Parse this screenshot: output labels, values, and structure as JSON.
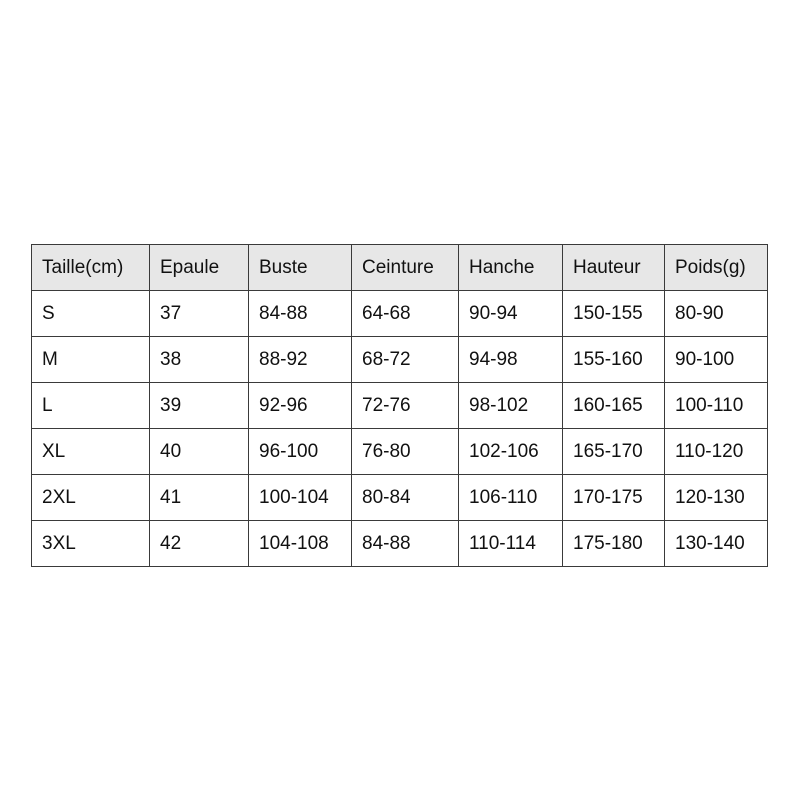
{
  "table": {
    "headers": [
      "Taille(cm)",
      "Epaule",
      "Buste",
      "Ceinture",
      "Hanche",
      "Hauteur",
      "Poids(g)"
    ],
    "rows": [
      [
        "S",
        "37",
        "84-88",
        "64-68",
        "90-94",
        "150-155",
        "80-90"
      ],
      [
        "M",
        "38",
        "88-92",
        "68-72",
        "94-98",
        "155-160",
        "90-100"
      ],
      [
        "L",
        "39",
        "92-96",
        "72-76",
        "98-102",
        "160-165",
        "100-110"
      ],
      [
        "XL",
        "40",
        "96-100",
        "76-80",
        "102-106",
        "165-170",
        "110-120"
      ],
      [
        "2XL",
        "41",
        "100-104",
        "80-84",
        "106-110",
        "170-175",
        "120-130"
      ],
      [
        "3XL",
        "42",
        "104-108",
        "84-88",
        "110-114",
        "175-180",
        "130-140"
      ]
    ],
    "header_background": "#e7e7e7"
  }
}
